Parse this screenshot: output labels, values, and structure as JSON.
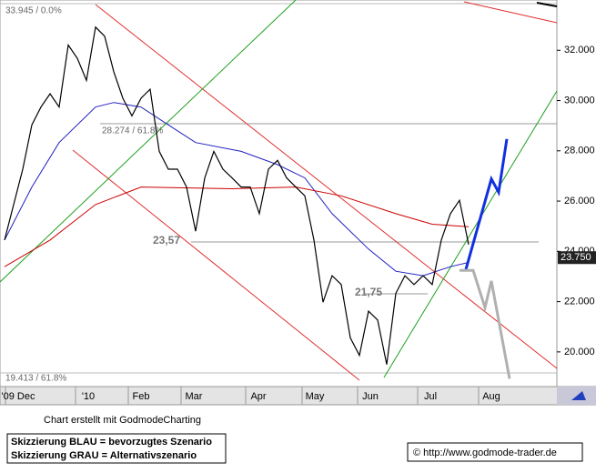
{
  "chart_data": {
    "type": "line",
    "x": [
      0,
      1,
      2,
      3,
      4,
      5,
      6,
      7,
      8,
      9,
      10,
      11,
      12,
      13,
      14,
      15,
      16,
      17,
      18,
      19,
      20,
      21,
      22,
      23,
      24,
      25,
      26,
      27,
      28,
      29,
      30,
      31,
      32,
      33,
      34,
      35,
      36,
      37,
      38,
      39,
      40,
      41,
      42,
      43,
      44,
      45,
      46,
      47,
      48,
      49,
      50,
      51
    ],
    "values": [
      24.45,
      25.86,
      27.27,
      29.03,
      29.74,
      30.27,
      29.74,
      32.21,
      31.68,
      30.8,
      32.92,
      32.56,
      31.15,
      30.09,
      29.39,
      30.09,
      30.45,
      27.98,
      27.27,
      27.27,
      26.56,
      24.8,
      26.92,
      27.98,
      27.27,
      26.92,
      26.56,
      26.56,
      25.5,
      27.27,
      27.62,
      26.92,
      26.56,
      26.21,
      24.45,
      21.98,
      23.03,
      22.68,
      20.56,
      19.86,
      21.62,
      21.27,
      19.5,
      22.33,
      23.03,
      22.68,
      23.03,
      22.68,
      24.45,
      25.5,
      26.03,
      24.27
    ],
    "color": "#000000",
    "series": [
      {
        "color": "#2020c0",
        "x": [
          0,
          3,
          6,
          10,
          12,
          15,
          18,
          21,
          26,
          30,
          33,
          36,
          40,
          43,
          46,
          49,
          51
        ],
        "values": [
          24.45,
          26.56,
          28.33,
          29.74,
          29.92,
          29.74,
          29.03,
          28.33,
          27.98,
          27.45,
          26.92,
          25.5,
          24.09,
          23.21,
          23.03,
          23.39,
          23.56
        ]
      },
      {
        "color": "#cc0000",
        "x": [
          0,
          5,
          10,
          15,
          25,
          32,
          37,
          43,
          47,
          51
        ],
        "values": [
          23.39,
          24.45,
          25.86,
          26.56,
          26.49,
          26.56,
          26.21,
          25.5,
          25.08,
          24.98
        ]
      },
      {
        "color": "#1030e0",
        "x": [
          50.7,
          53.5,
          54.3,
          55.2
        ],
        "values": [
          23.28,
          26.88,
          26.35,
          28.47
        ]
      },
      {
        "color": "#b0b0b0",
        "x": [
          50.0,
          51.5,
          52.8,
          53.5,
          55.5
        ],
        "values": [
          23.24,
          23.24,
          21.76,
          22.82,
          18.93
        ]
      }
    ],
    "xlim": [
      -0.5,
      60.7
    ],
    "ylim": [
      18.62,
      34.0
    ],
    "xticks": [
      {
        "value": 1.5,
        "label": "'09 Dec"
      },
      {
        "value": 9.2,
        "label": "'10"
      },
      {
        "value": 15,
        "label": "Feb"
      },
      {
        "value": 20.8,
        "label": "Mar"
      },
      {
        "value": 27.9,
        "label": "Apr"
      },
      {
        "value": 34.1,
        "label": "May"
      },
      {
        "value": 40.2,
        "label": "Jun"
      },
      {
        "value": 46.8,
        "label": "Jul"
      },
      {
        "value": 53.5,
        "label": "Aug"
      }
    ],
    "yticks": [
      {
        "value": 20,
        "label": "20.000"
      },
      {
        "value": 22,
        "label": "22.000"
      },
      {
        "value": 24,
        "label": "24.000"
      },
      {
        "value": 26,
        "label": "26.000"
      },
      {
        "value": 28,
        "label": "28.000"
      },
      {
        "value": 30,
        "label": "30.000"
      },
      {
        "value": 32,
        "label": "32.000"
      }
    ],
    "last_price": {
      "value": 23.75,
      "label": "23.750"
    },
    "annotations": [
      "33.945 / 0.0%",
      "28.274 / 61.8%",
      "23,57",
      "21,75",
      "19.413 / 61.8%"
    ],
    "credit": "Chart erstellt mit GodmodeCharting",
    "notes": [
      "Skizzierung BLAU = bevorzugtes Szenario",
      "Skizzierung GRAU = Alternativszenario"
    ],
    "source": "© http://www.godmode-trader.de"
  }
}
